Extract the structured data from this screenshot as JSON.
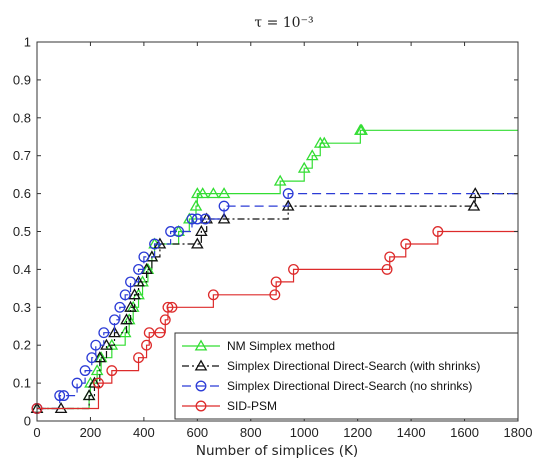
{
  "chart_data": {
    "type": "line",
    "step": true,
    "title": "τ = 10⁻³",
    "xlabel": "Number of simplices (K)",
    "ylabel": "",
    "xlim": [
      0,
      1800
    ],
    "ylim": [
      0,
      1
    ],
    "xticks": [
      0,
      200,
      400,
      600,
      800,
      1000,
      1200,
      1400,
      1600,
      1800
    ],
    "yticks": [
      0,
      0.1,
      0.2,
      0.3,
      0.4,
      0.5,
      0.6,
      0.7,
      0.8,
      0.9,
      1
    ],
    "grid": false,
    "legend_position": "bottom-right",
    "series": [
      {
        "name": "NM Simplex method",
        "color": "#33dd33",
        "marker": "triangle",
        "line_style": "solid",
        "x": [
          0,
          195,
          200,
          225,
          240,
          280,
          330,
          345,
          360,
          380,
          395,
          415,
          430,
          440,
          530,
          570,
          595,
          600,
          620,
          660,
          700,
          910,
          1000,
          1030,
          1060,
          1075,
          1210,
          1215
        ],
        "y": [
          0.033,
          0.067,
          0.1,
          0.133,
          0.167,
          0.2,
          0.233,
          0.267,
          0.3,
          0.333,
          0.367,
          0.4,
          0.433,
          0.467,
          0.5,
          0.533,
          0.567,
          0.6,
          0.6,
          0.6,
          0.6,
          0.633,
          0.667,
          0.7,
          0.733,
          0.733,
          0.767,
          0.767
        ]
      },
      {
        "name": "Simplex Directional Direct-Search (with shrinks)",
        "color": "#111111",
        "marker": "triangle",
        "line_style": "dashdot",
        "x": [
          0,
          90,
          195,
          215,
          235,
          260,
          290,
          335,
          350,
          365,
          380,
          410,
          430,
          460,
          600,
          615,
          635,
          700,
          940,
          1635,
          1640
        ],
        "y": [
          0.033,
          0.033,
          0.067,
          0.1,
          0.167,
          0.2,
          0.233,
          0.267,
          0.3,
          0.333,
          0.367,
          0.4,
          0.433,
          0.467,
          0.467,
          0.5,
          0.533,
          0.533,
          0.567,
          0.567,
          0.6
        ]
      },
      {
        "name": "Simplex Directional Direct-Search (no shrinks)",
        "color": "#2b3bd6",
        "marker": "circle",
        "line_style": "dashed",
        "x": [
          0,
          85,
          100,
          150,
          180,
          205,
          220,
          250,
          290,
          310,
          330,
          350,
          380,
          400,
          440,
          500,
          530,
          580,
          600,
          630,
          700,
          940
        ],
        "y": [
          0.033,
          0.067,
          0.067,
          0.1,
          0.133,
          0.167,
          0.2,
          0.233,
          0.267,
          0.3,
          0.333,
          0.367,
          0.4,
          0.433,
          0.467,
          0.5,
          0.5,
          0.533,
          0.533,
          0.533,
          0.567,
          0.6
        ]
      },
      {
        "name": "SID-PSM",
        "color": "#dd2b2b",
        "marker": "circle",
        "line_style": "solid",
        "x": [
          0,
          230,
          280,
          380,
          410,
          420,
          460,
          480,
          490,
          505,
          660,
          890,
          895,
          960,
          1310,
          1320,
          1380,
          1500
        ],
        "y": [
          0.033,
          0.1,
          0.133,
          0.167,
          0.2,
          0.233,
          0.233,
          0.267,
          0.3,
          0.3,
          0.333,
          0.333,
          0.367,
          0.4,
          0.4,
          0.433,
          0.467,
          0.5
        ]
      }
    ]
  }
}
